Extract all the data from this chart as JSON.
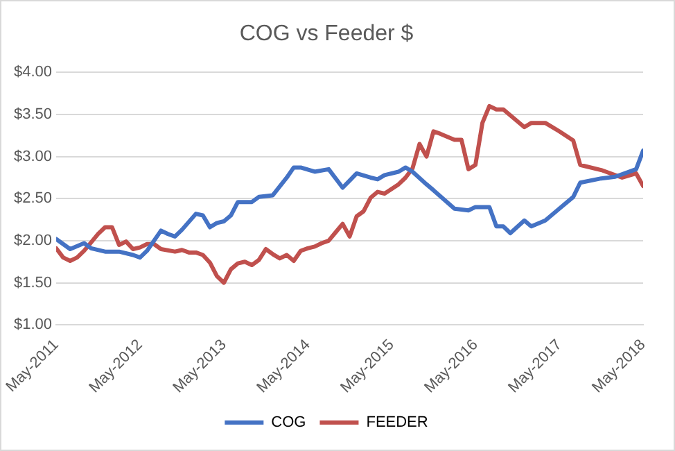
{
  "chart_data": {
    "type": "line",
    "title": "COG vs Feeder $",
    "xlim": [
      "2011-05",
      "2018-05"
    ],
    "xticks": [
      {
        "value": "2011-05",
        "label": "May-2011"
      },
      {
        "value": "2012-05",
        "label": "May-2012"
      },
      {
        "value": "2013-05",
        "label": "May-2013"
      },
      {
        "value": "2014-05",
        "label": "May-2014"
      },
      {
        "value": "2015-05",
        "label": "May-2015"
      },
      {
        "value": "2016-05",
        "label": "May-2016"
      },
      {
        "value": "2017-05",
        "label": "May-2017"
      },
      {
        "value": "2018-05",
        "label": "May-2018"
      }
    ],
    "ylim": [
      1,
      4
    ],
    "yticks": [
      {
        "value": 1,
        "label": "$1.00"
      },
      {
        "value": 1.5,
        "label": "$1.50"
      },
      {
        "value": 2,
        "label": "$2.00"
      },
      {
        "value": 2.5,
        "label": "$2.50"
      },
      {
        "value": 3,
        "label": "$3.00"
      },
      {
        "value": 3.5,
        "label": "$3.50"
      },
      {
        "value": 4,
        "label": "$4.00"
      }
    ],
    "grid": "y",
    "legend": "bottom",
    "marker": "none",
    "line_style": "solid",
    "series": [
      {
        "name": "COG",
        "color": "#4472c4",
        "x": [
          "2011-05",
          "2011-07",
          "2011-09",
          "2011-10",
          "2011-12",
          "2012-02",
          "2012-04",
          "2012-05",
          "2012-06",
          "2012-08",
          "2012-09",
          "2012-10",
          "2012-11",
          "2013-01",
          "2013-02",
          "2013-03",
          "2013-04",
          "2013-05",
          "2013-06",
          "2013-07",
          "2013-09",
          "2013-10",
          "2013-12",
          "2014-02",
          "2014-03",
          "2014-04",
          "2014-06",
          "2014-08",
          "2014-10",
          "2014-12",
          "2015-02",
          "2015-03",
          "2015-04",
          "2015-06",
          "2015-07",
          "2015-08",
          "2015-10",
          "2015-11",
          "2016-02",
          "2016-04",
          "2016-05",
          "2016-07",
          "2016-08",
          "2016-09",
          "2016-10",
          "2016-12",
          "2017-01",
          "2017-03",
          "2017-05",
          "2017-07",
          "2017-08",
          "2017-11",
          "2018-01",
          "2018-04",
          "2018-05"
        ],
        "values": [
          2.02,
          1.9,
          1.97,
          1.91,
          1.87,
          1.87,
          1.83,
          1.8,
          1.88,
          2.12,
          2.08,
          2.05,
          2.13,
          2.32,
          2.3,
          2.16,
          2.21,
          2.23,
          2.3,
          2.46,
          2.46,
          2.52,
          2.54,
          2.75,
          2.87,
          2.87,
          2.82,
          2.85,
          2.63,
          2.8,
          2.75,
          2.73,
          2.78,
          2.82,
          2.87,
          2.82,
          2.67,
          2.6,
          2.38,
          2.36,
          2.4,
          2.4,
          2.17,
          2.17,
          2.09,
          2.24,
          2.17,
          2.24,
          2.38,
          2.52,
          2.69,
          2.74,
          2.76,
          2.85,
          3.07
        ]
      },
      {
        "name": "FEEDER",
        "color": "#c0504d",
        "x": [
          "2011-05",
          "2011-06",
          "2011-07",
          "2011-08",
          "2011-09",
          "2011-10",
          "2011-11",
          "2011-12",
          "2012-01",
          "2012-02",
          "2012-03",
          "2012-04",
          "2012-05",
          "2012-06",
          "2012-07",
          "2012-08",
          "2012-10",
          "2012-11",
          "2012-12",
          "2013-01",
          "2013-02",
          "2013-03",
          "2013-04",
          "2013-05",
          "2013-06",
          "2013-07",
          "2013-08",
          "2013-09",
          "2013-10",
          "2013-11",
          "2013-12",
          "2014-01",
          "2014-02",
          "2014-03",
          "2014-04",
          "2014-05",
          "2014-06",
          "2014-07",
          "2014-08",
          "2014-09",
          "2014-10",
          "2014-11",
          "2014-12",
          "2015-01",
          "2015-02",
          "2015-03",
          "2015-04",
          "2015-06",
          "2015-07",
          "2015-08",
          "2015-09",
          "2015-10",
          "2015-11",
          "2015-12",
          "2016-02",
          "2016-03",
          "2016-04",
          "2016-05",
          "2016-06",
          "2016-07",
          "2016-08",
          "2016-09",
          "2016-12",
          "2017-01",
          "2017-03",
          "2017-05",
          "2017-07",
          "2017-08",
          "2017-11",
          "2018-02",
          "2018-04",
          "2018-05"
        ],
        "values": [
          1.91,
          1.8,
          1.76,
          1.8,
          1.88,
          1.98,
          2.08,
          2.16,
          2.16,
          1.95,
          1.99,
          1.9,
          1.92,
          1.96,
          1.96,
          1.9,
          1.87,
          1.89,
          1.86,
          1.86,
          1.83,
          1.74,
          1.58,
          1.5,
          1.66,
          1.73,
          1.75,
          1.71,
          1.77,
          1.9,
          1.84,
          1.79,
          1.83,
          1.76,
          1.88,
          1.91,
          1.93,
          1.97,
          2.0,
          2.1,
          2.2,
          2.05,
          2.29,
          2.35,
          2.51,
          2.58,
          2.56,
          2.67,
          2.75,
          2.86,
          3.15,
          3.0,
          3.3,
          3.27,
          3.2,
          3.2,
          2.85,
          2.9,
          3.4,
          3.6,
          3.56,
          3.56,
          3.35,
          3.4,
          3.4,
          3.3,
          3.19,
          2.9,
          2.84,
          2.75,
          2.8,
          2.65
        ]
      }
    ]
  }
}
